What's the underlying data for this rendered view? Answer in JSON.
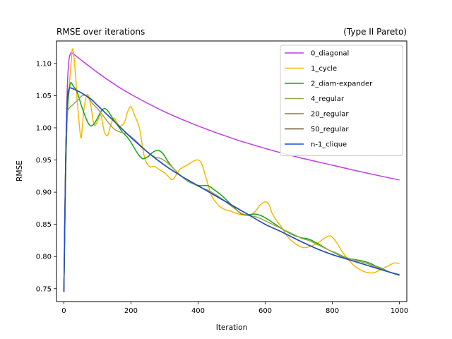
{
  "chart_data": {
    "type": "line",
    "title": "RMSE over iterations",
    "subtitle": "(Type II Pareto)",
    "xlabel": "Iteration",
    "ylabel": "RMSE",
    "xlim": [
      -22,
      1022
    ],
    "ylim": [
      0.73,
      1.135
    ],
    "xticks": [
      0,
      200,
      400,
      600,
      800,
      1000
    ],
    "yticks": [
      0.75,
      0.8,
      0.85,
      0.9,
      0.95,
      1.0,
      1.05,
      1.1
    ],
    "ytick_labels": [
      "0.75",
      "0.80",
      "0.85",
      "0.90",
      "0.95",
      "1.00",
      "1.05",
      "1.10"
    ],
    "grid": false,
    "legend_position": "upper right",
    "series": [
      {
        "name": "0_diagonal",
        "color": "#bf3be8",
        "points": [
          [
            0,
            0.745
          ],
          [
            3,
            0.85
          ],
          [
            6,
            0.97
          ],
          [
            10,
            1.06
          ],
          [
            15,
            1.105
          ],
          [
            20,
            1.115
          ],
          [
            25,
            1.116
          ],
          [
            50,
            1.106
          ],
          [
            100,
            1.086
          ],
          [
            150,
            1.068
          ],
          [
            200,
            1.052
          ],
          [
            300,
            1.025
          ],
          [
            400,
            1.003
          ],
          [
            500,
            0.984
          ],
          [
            600,
            0.968
          ],
          [
            700,
            0.954
          ],
          [
            800,
            0.942
          ],
          [
            900,
            0.93
          ],
          [
            1000,
            0.919
          ]
        ]
      },
      {
        "name": "1_cycle",
        "color": "#f5b800",
        "points": [
          [
            0,
            0.745
          ],
          [
            5,
            0.92
          ],
          [
            10,
            1.02
          ],
          [
            15,
            1.06
          ],
          [
            20,
            1.09
          ],
          [
            25,
            1.122
          ],
          [
            30,
            1.11
          ],
          [
            35,
            1.08
          ],
          [
            40,
            1.04
          ],
          [
            50,
            0.986
          ],
          [
            55,
            1.0
          ],
          [
            60,
            1.03
          ],
          [
            70,
            1.052
          ],
          [
            80,
            1.035
          ],
          [
            90,
            1.005
          ],
          [
            100,
            1.01
          ],
          [
            110,
            1.02
          ],
          [
            120,
            0.995
          ],
          [
            130,
            0.988
          ],
          [
            140,
            1.005
          ],
          [
            150,
            1.015
          ],
          [
            165,
            1.003
          ],
          [
            180,
            1.008
          ],
          [
            190,
            1.025
          ],
          [
            200,
            1.033
          ],
          [
            210,
            1.02
          ],
          [
            225,
            1.0
          ],
          [
            240,
            0.955
          ],
          [
            255,
            0.94
          ],
          [
            270,
            0.94
          ],
          [
            285,
            0.935
          ],
          [
            300,
            0.93
          ],
          [
            310,
            0.925
          ],
          [
            325,
            0.92
          ],
          [
            345,
            0.935
          ],
          [
            370,
            0.943
          ],
          [
            395,
            0.95
          ],
          [
            410,
            0.945
          ],
          [
            425,
            0.92
          ],
          [
            440,
            0.895
          ],
          [
            460,
            0.88
          ],
          [
            480,
            0.873
          ],
          [
            500,
            0.87
          ],
          [
            520,
            0.866
          ],
          [
            540,
            0.864
          ],
          [
            555,
            0.864
          ],
          [
            570,
            0.87
          ],
          [
            585,
            0.88
          ],
          [
            600,
            0.885
          ],
          [
            612,
            0.88
          ],
          [
            620,
            0.868
          ],
          [
            635,
            0.855
          ],
          [
            650,
            0.845
          ],
          [
            665,
            0.832
          ],
          [
            680,
            0.824
          ],
          [
            695,
            0.818
          ],
          [
            712,
            0.814
          ],
          [
            730,
            0.815
          ],
          [
            745,
            0.818
          ],
          [
            760,
            0.822
          ],
          [
            775,
            0.828
          ],
          [
            790,
            0.832
          ],
          [
            800,
            0.83
          ],
          [
            815,
            0.82
          ],
          [
            830,
            0.807
          ],
          [
            848,
            0.795
          ],
          [
            865,
            0.786
          ],
          [
            885,
            0.779
          ],
          [
            905,
            0.775
          ],
          [
            925,
            0.775
          ],
          [
            945,
            0.78
          ],
          [
            965,
            0.785
          ],
          [
            985,
            0.79
          ],
          [
            1000,
            0.789
          ]
        ]
      },
      {
        "name": "2_diam-expander",
        "color": "#17a317",
        "points": [
          [
            0,
            0.745
          ],
          [
            5,
            0.92
          ],
          [
            10,
            1.02
          ],
          [
            15,
            1.055
          ],
          [
            20,
            1.07
          ],
          [
            28,
            1.065
          ],
          [
            40,
            1.055
          ],
          [
            55,
            1.03
          ],
          [
            70,
            1.01
          ],
          [
            80,
            1.003
          ],
          [
            90,
            1.006
          ],
          [
            100,
            1.015
          ],
          [
            110,
            1.025
          ],
          [
            120,
            1.03
          ],
          [
            130,
            1.027
          ],
          [
            145,
            1.015
          ],
          [
            160,
            1.004
          ],
          [
            175,
            0.993
          ],
          [
            190,
            0.985
          ],
          [
            205,
            0.973
          ],
          [
            220,
            0.96
          ],
          [
            235,
            0.952
          ],
          [
            250,
            0.955
          ],
          [
            265,
            0.962
          ],
          [
            280,
            0.965
          ],
          [
            295,
            0.96
          ],
          [
            310,
            0.948
          ],
          [
            330,
            0.935
          ],
          [
            350,
            0.925
          ],
          [
            370,
            0.917
          ],
          [
            390,
            0.912
          ],
          [
            410,
            0.91
          ],
          [
            430,
            0.91
          ],
          [
            450,
            0.903
          ],
          [
            470,
            0.895
          ],
          [
            490,
            0.885
          ],
          [
            510,
            0.875
          ],
          [
            530,
            0.866
          ],
          [
            550,
            0.865
          ],
          [
            570,
            0.866
          ],
          [
            590,
            0.863
          ],
          [
            610,
            0.857
          ],
          [
            630,
            0.85
          ],
          [
            650,
            0.843
          ],
          [
            670,
            0.837
          ],
          [
            690,
            0.832
          ],
          [
            710,
            0.829
          ],
          [
            730,
            0.827
          ],
          [
            750,
            0.822
          ],
          [
            770,
            0.816
          ],
          [
            790,
            0.81
          ],
          [
            810,
            0.805
          ],
          [
            830,
            0.8
          ],
          [
            850,
            0.797
          ],
          [
            870,
            0.795
          ],
          [
            890,
            0.793
          ],
          [
            910,
            0.79
          ],
          [
            930,
            0.785
          ],
          [
            950,
            0.781
          ],
          [
            970,
            0.776
          ],
          [
            1000,
            0.772
          ]
        ]
      },
      {
        "name": "4_regular",
        "color": "#a0a54a",
        "points": [
          [
            0,
            0.745
          ],
          [
            5,
            0.93
          ],
          [
            10,
            1.015
          ],
          [
            15,
            1.03
          ],
          [
            25,
            1.035
          ],
          [
            35,
            1.04
          ],
          [
            45,
            1.045
          ],
          [
            55,
            1.05
          ],
          [
            65,
            1.05
          ],
          [
            75,
            1.045
          ],
          [
            85,
            1.038
          ],
          [
            100,
            1.03
          ],
          [
            115,
            1.02
          ],
          [
            130,
            1.01
          ],
          [
            150,
            0.998
          ],
          [
            170,
            0.993
          ],
          [
            190,
            0.99
          ],
          [
            210,
            0.982
          ],
          [
            230,
            0.972
          ],
          [
            250,
            0.962
          ],
          [
            270,
            0.955
          ],
          [
            290,
            0.952
          ],
          [
            310,
            0.945
          ],
          [
            330,
            0.935
          ],
          [
            350,
            0.925
          ],
          [
            370,
            0.918
          ],
          [
            390,
            0.912
          ],
          [
            410,
            0.907
          ],
          [
            430,
            0.903
          ],
          [
            450,
            0.897
          ],
          [
            470,
            0.89
          ],
          [
            490,
            0.882
          ],
          [
            510,
            0.874
          ],
          [
            530,
            0.867
          ],
          [
            550,
            0.864
          ],
          [
            570,
            0.862
          ],
          [
            590,
            0.858
          ],
          [
            610,
            0.853
          ],
          [
            630,
            0.848
          ],
          [
            650,
            0.843
          ],
          [
            670,
            0.838
          ],
          [
            690,
            0.833
          ],
          [
            710,
            0.828
          ],
          [
            730,
            0.825
          ],
          [
            750,
            0.82
          ],
          [
            770,
            0.815
          ],
          [
            790,
            0.81
          ],
          [
            810,
            0.806
          ],
          [
            830,
            0.801
          ],
          [
            850,
            0.797
          ],
          [
            870,
            0.794
          ],
          [
            890,
            0.791
          ],
          [
            910,
            0.788
          ],
          [
            930,
            0.784
          ],
          [
            950,
            0.78
          ],
          [
            970,
            0.776
          ],
          [
            1000,
            0.771
          ]
        ]
      },
      {
        "name": "20_regular",
        "color": "#a67a00",
        "points": [
          [
            0,
            0.745
          ],
          [
            5,
            0.94
          ],
          [
            10,
            1.04
          ],
          [
            15,
            1.06
          ],
          [
            20,
            1.062
          ],
          [
            30,
            1.06
          ],
          [
            50,
            1.055
          ],
          [
            80,
            1.045
          ],
          [
            100,
            1.035
          ],
          [
            150,
            1.01
          ],
          [
            200,
            0.985
          ],
          [
            250,
            0.962
          ],
          [
            300,
            0.942
          ],
          [
            350,
            0.925
          ],
          [
            400,
            0.91
          ],
          [
            450,
            0.895
          ],
          [
            500,
            0.88
          ],
          [
            550,
            0.865
          ],
          [
            600,
            0.85
          ],
          [
            650,
            0.838
          ],
          [
            700,
            0.825
          ],
          [
            750,
            0.813
          ],
          [
            800,
            0.803
          ],
          [
            850,
            0.795
          ],
          [
            900,
            0.787
          ],
          [
            950,
            0.779
          ],
          [
            1000,
            0.771
          ]
        ]
      },
      {
        "name": "50_regular",
        "color": "#6b4f2a",
        "points": [
          [
            0,
            0.745
          ],
          [
            5,
            0.94
          ],
          [
            10,
            1.04
          ],
          [
            15,
            1.06
          ],
          [
            20,
            1.062
          ],
          [
            30,
            1.06
          ],
          [
            50,
            1.055
          ],
          [
            80,
            1.045
          ],
          [
            100,
            1.035
          ],
          [
            150,
            1.01
          ],
          [
            200,
            0.985
          ],
          [
            250,
            0.962
          ],
          [
            300,
            0.942
          ],
          [
            350,
            0.925
          ],
          [
            400,
            0.91
          ],
          [
            450,
            0.895
          ],
          [
            500,
            0.88
          ],
          [
            550,
            0.865
          ],
          [
            600,
            0.85
          ],
          [
            650,
            0.838
          ],
          [
            700,
            0.825
          ],
          [
            750,
            0.813
          ],
          [
            800,
            0.803
          ],
          [
            850,
            0.795
          ],
          [
            900,
            0.787
          ],
          [
            950,
            0.779
          ],
          [
            1000,
            0.771
          ]
        ]
      },
      {
        "name": "n-1_clique",
        "color": "#1f4fcf",
        "points": [
          [
            0,
            0.745
          ],
          [
            5,
            0.94
          ],
          [
            10,
            1.04
          ],
          [
            15,
            1.06
          ],
          [
            20,
            1.062
          ],
          [
            30,
            1.06
          ],
          [
            50,
            1.055
          ],
          [
            80,
            1.045
          ],
          [
            100,
            1.035
          ],
          [
            150,
            1.01
          ],
          [
            200,
            0.985
          ],
          [
            250,
            0.962
          ],
          [
            300,
            0.942
          ],
          [
            350,
            0.925
          ],
          [
            400,
            0.91
          ],
          [
            450,
            0.895
          ],
          [
            500,
            0.88
          ],
          [
            550,
            0.865
          ],
          [
            600,
            0.85
          ],
          [
            650,
            0.838
          ],
          [
            700,
            0.825
          ],
          [
            750,
            0.813
          ],
          [
            800,
            0.803
          ],
          [
            850,
            0.795
          ],
          [
            900,
            0.787
          ],
          [
            950,
            0.779
          ],
          [
            1000,
            0.771
          ]
        ]
      }
    ]
  }
}
